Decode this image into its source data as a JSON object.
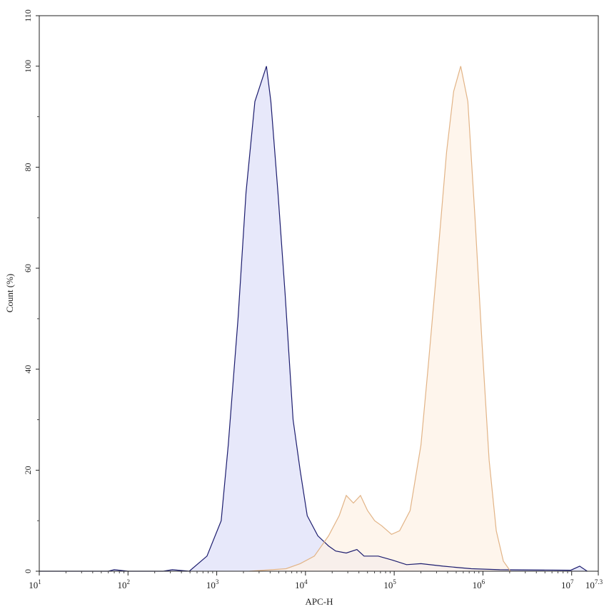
{
  "chart_data": {
    "type": "area",
    "title": "",
    "xlabel": "APC-H",
    "ylabel": "Count (%)",
    "xscale": "log",
    "xlim": [
      10,
      19952623
    ],
    "ylim": [
      0,
      110
    ],
    "grid": false,
    "x_ticks": [
      {
        "base": "10",
        "exp": "1",
        "value": 10
      },
      {
        "base": "10",
        "exp": "2",
        "value": 100
      },
      {
        "base": "10",
        "exp": "3",
        "value": 1000
      },
      {
        "base": "10",
        "exp": "4",
        "value": 10000
      },
      {
        "base": "10",
        "exp": "5",
        "value": 100000
      },
      {
        "base": "10",
        "exp": "6",
        "value": 1000000
      },
      {
        "base": "10",
        "exp": "7",
        "value": 10000000
      },
      {
        "base": "10",
        "exp": "7.3",
        "value": 19952623
      }
    ],
    "y_ticks": [
      "0",
      "20",
      "40",
      "60",
      "80",
      "100",
      "110"
    ],
    "series": [
      {
        "color": "#1c1c6e",
        "fill": "#e4e6fa",
        "points": [
          [
            10,
            0
          ],
          [
            60,
            0
          ],
          [
            70,
            0.3
          ],
          [
            100,
            0
          ],
          [
            250,
            0
          ],
          [
            316,
            0.3
          ],
          [
            490,
            0
          ],
          [
            776,
            3
          ],
          [
            1122,
            10
          ],
          [
            1349,
            25
          ],
          [
            1738,
            50
          ],
          [
            2138,
            75
          ],
          [
            2692,
            93
          ],
          [
            3631,
            100
          ],
          [
            4074,
            93
          ],
          [
            4898,
            75
          ],
          [
            5888,
            55
          ],
          [
            7244,
            30
          ],
          [
            8710,
            20
          ],
          [
            10470,
            11
          ],
          [
            13800,
            7
          ],
          [
            18200,
            5
          ],
          [
            21900,
            4
          ],
          [
            28800,
            3.6
          ],
          [
            38000,
            4.3
          ],
          [
            45700,
            3
          ],
          [
            66100,
            3
          ],
          [
            95500,
            2.2
          ],
          [
            138000,
            1.3
          ],
          [
            200000,
            1.5
          ],
          [
            355000,
            1
          ],
          [
            741000,
            0.5
          ],
          [
            1550000,
            0.3
          ],
          [
            9770000,
            0.2
          ],
          [
            12300000,
            1
          ],
          [
            14100000,
            0.3
          ],
          [
            15000000,
            0
          ]
        ]
      },
      {
        "color": "#e2b487",
        "fill": "#fdf2e6",
        "points": [
          [
            2340,
            0
          ],
          [
            6030,
            0.5
          ],
          [
            8710,
            1.5
          ],
          [
            12600,
            3
          ],
          [
            18200,
            7
          ],
          [
            24000,
            11
          ],
          [
            28800,
            15
          ],
          [
            34700,
            13.5
          ],
          [
            41700,
            15
          ],
          [
            50100,
            12
          ],
          [
            60300,
            10
          ],
          [
            72400,
            9
          ],
          [
            93300,
            7.3
          ],
          [
            115000,
            8
          ],
          [
            151000,
            12
          ],
          [
            200000,
            25
          ],
          [
            240000,
            40
          ],
          [
            302000,
            60
          ],
          [
            389000,
            83
          ],
          [
            468000,
            95
          ],
          [
            562000,
            100
          ],
          [
            676000,
            93
          ],
          [
            813000,
            70
          ],
          [
            977000,
            45
          ],
          [
            1175000,
            22
          ],
          [
            1413000,
            8
          ],
          [
            1698000,
            2
          ],
          [
            2042000,
            0
          ]
        ]
      }
    ]
  }
}
